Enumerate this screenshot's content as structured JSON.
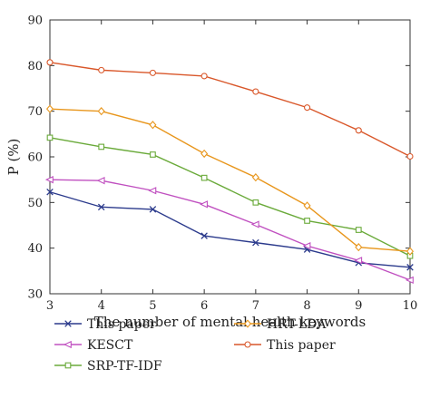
{
  "chart_data": {
    "type": "line",
    "title": "",
    "xlabel": "The number of mental health keywords",
    "ylabel": "P (%)",
    "x": [
      3,
      4,
      5,
      6,
      7,
      8,
      9,
      10
    ],
    "xlim": [
      3,
      10
    ],
    "ylim": [
      30,
      90
    ],
    "xticks": [
      "3",
      "4",
      "5",
      "6",
      "7",
      "8",
      "9",
      "10"
    ],
    "yticks": [
      "30",
      "40",
      "50",
      "60",
      "70",
      "80",
      "90"
    ],
    "grid": false,
    "legend_position": "bottom",
    "series": [
      {
        "name": "This paper",
        "color": "#2b3a8c",
        "marker": "x",
        "values": [
          52.3,
          49.0,
          48.5,
          42.7,
          41.2,
          39.7,
          36.8,
          35.8
        ]
      },
      {
        "name": "KESCT",
        "color": "#c050c0",
        "marker": "triangle-left",
        "values": [
          55.0,
          54.8,
          52.6,
          49.6,
          45.2,
          40.5,
          37.3,
          33.0
        ]
      },
      {
        "name": "SRP-TF-IDF",
        "color": "#6aaa3a",
        "marker": "square",
        "values": [
          64.2,
          62.2,
          60.5,
          55.4,
          50.0,
          46.0,
          44.0,
          38.3
        ]
      },
      {
        "name": "HRT-LDA",
        "color": "#e8961c",
        "marker": "diamond",
        "values": [
          70.5,
          70.0,
          67.0,
          60.7,
          55.5,
          49.3,
          40.2,
          39.3
        ]
      },
      {
        "name": "This paper",
        "color": "#d9572a",
        "marker": "circle",
        "values": [
          80.7,
          79.0,
          78.4,
          77.7,
          74.3,
          70.8,
          65.8,
          60.1
        ]
      }
    ]
  }
}
